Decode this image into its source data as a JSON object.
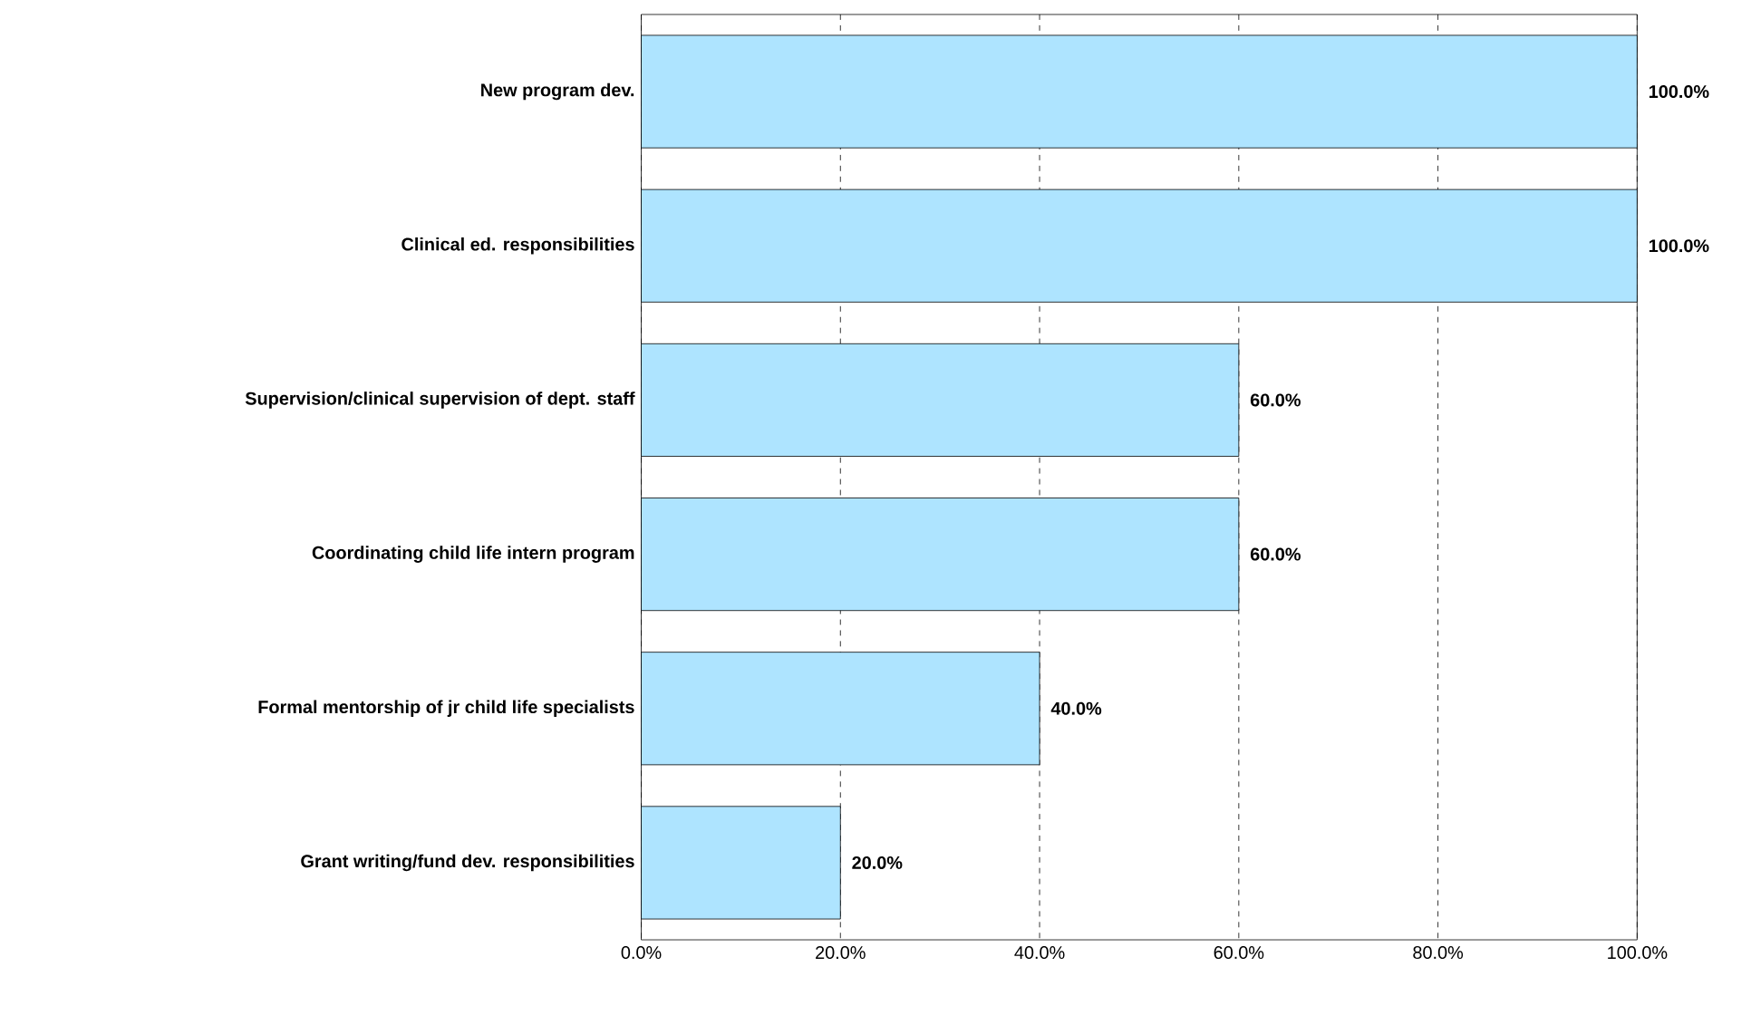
{
  "chart_data": {
    "type": "bar",
    "orientation": "horizontal",
    "categories": [
      "New program dev.",
      "Clinical ed. responsibilities",
      "Supervision/clinical supervision of dept. staff",
      "Coordinating child life intern program",
      "Formal mentorship of jr child life specialists",
      "Grant writing/fund dev. responsibilities"
    ],
    "values": [
      100,
      100,
      60,
      60,
      40,
      20
    ],
    "value_labels": [
      "100.0%",
      "100.0%",
      "60.0%",
      "60.0%",
      "40.0%",
      "20.0%"
    ],
    "color": "#aee4ff",
    "xlim": [
      0,
      100
    ],
    "xticks": [
      {
        "value": 0,
        "label": "0.0%"
      },
      {
        "value": 20,
        "label": "20.0%"
      },
      {
        "value": 40,
        "label": "40.0%"
      },
      {
        "value": 60,
        "label": "60.0%"
      },
      {
        "value": 80,
        "label": "80.0%"
      },
      {
        "value": 100,
        "label": "100.0%"
      }
    ],
    "grid": "x"
  }
}
